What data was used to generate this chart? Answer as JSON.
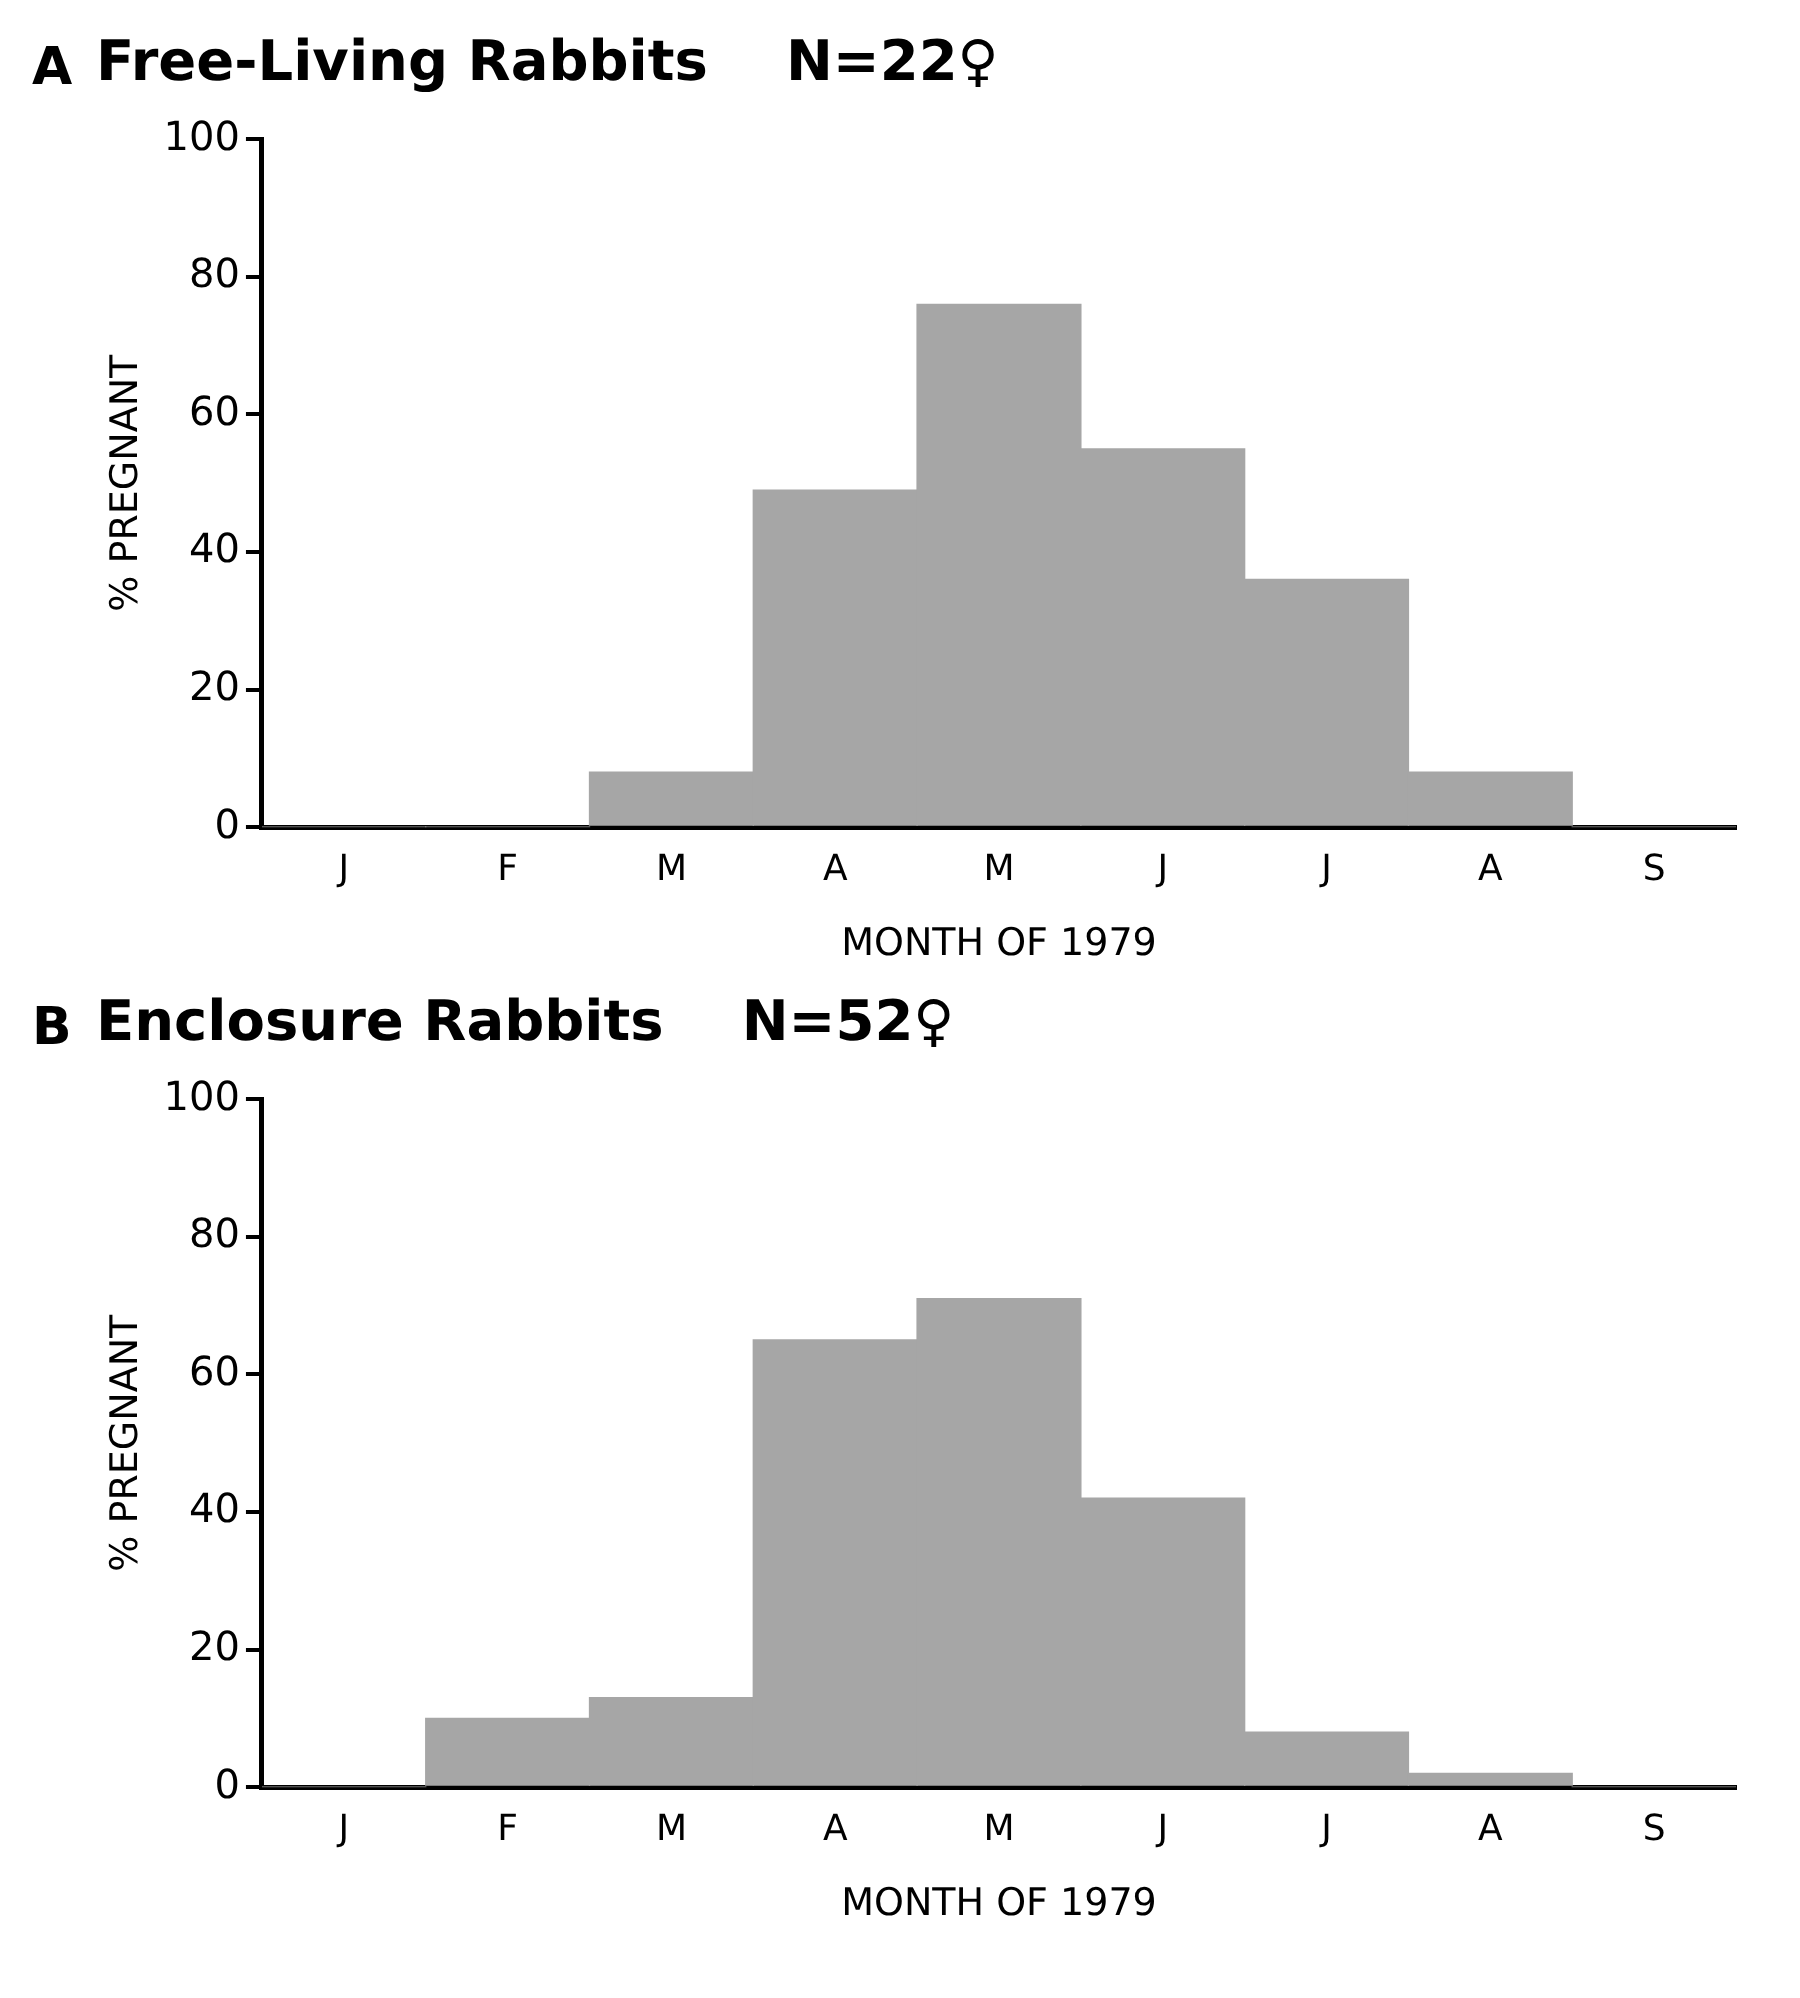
{
  "chart_data": [
    {
      "type": "bar",
      "title": "Free-Living Rabbits    N=22♀",
      "xlabel": "MONTH OF 1979",
      "ylabel": "% PREGNANT",
      "annotations": [
        "A"
      ],
      "categories": [
        "J",
        "F",
        "M",
        "A",
        "M",
        "J",
        "J",
        "A",
        "S"
      ],
      "values": [
        0,
        0,
        8,
        49,
        76,
        55,
        36,
        8,
        0
      ],
      "color": "#a6a6a6",
      "ylim": [
        0,
        100
      ],
      "yticks": [
        0,
        20,
        40,
        60,
        80,
        100
      ],
      "grid": false,
      "legend": false
    },
    {
      "type": "bar",
      "title": "Enclosure Rabbits    N=52♀",
      "xlabel": "MONTH OF 1979",
      "ylabel": "% PREGNANT",
      "annotations": [
        "B"
      ],
      "categories": [
        "J",
        "F",
        "M",
        "A",
        "M",
        "J",
        "J",
        "A",
        "S"
      ],
      "values": [
        0,
        10,
        13,
        65,
        71,
        42,
        8,
        2,
        0
      ],
      "color": "#a6a6a6",
      "ylim": [
        0,
        100
      ],
      "yticks": [
        0,
        20,
        40,
        60,
        80,
        100
      ],
      "grid": false,
      "legend": false
    }
  ]
}
